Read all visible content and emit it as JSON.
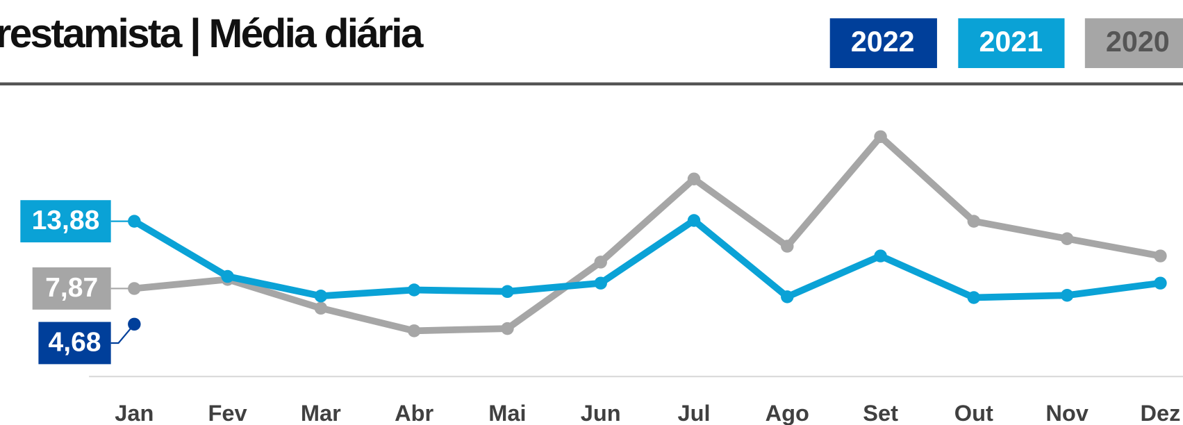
{
  "chart_data": {
    "type": "line",
    "title": "restamista | Média diária",
    "categories": [
      "Jan",
      "Fev",
      "Mar",
      "Abr",
      "Mai",
      "Jun",
      "Jul",
      "Ago",
      "Set",
      "Out",
      "Nov",
      "Dez"
    ],
    "ylim": [
      0,
      24
    ],
    "series": [
      {
        "name": "2022",
        "color": "#003f9a",
        "values": [
          4.68,
          null,
          null,
          null,
          null,
          null,
          null,
          null,
          null,
          null,
          null,
          null
        ],
        "value_labels": [
          "4,68",
          null,
          null,
          null,
          null,
          null,
          null,
          null,
          null,
          null,
          null,
          null
        ]
      },
      {
        "name": "2021",
        "color": "#0aa2d6",
        "values": [
          13.88,
          8.95,
          7.2,
          7.74,
          7.6,
          8.35,
          13.95,
          7.13,
          10.78,
          7.06,
          7.26,
          8.35
        ],
        "value_labels": [
          "13,88",
          null,
          null,
          null,
          null,
          null,
          null,
          null,
          null,
          null,
          null,
          null
        ]
      },
      {
        "name": "2020",
        "color": "#a6a6a6",
        "values": [
          7.87,
          8.68,
          6.11,
          4.09,
          4.29,
          10.23,
          17.66,
          11.65,
          21.44,
          13.88,
          12.32,
          10.78
        ],
        "value_labels": [
          "7,87",
          null,
          null,
          null,
          null,
          null,
          null,
          null,
          null,
          null,
          null,
          null
        ]
      }
    ]
  }
}
